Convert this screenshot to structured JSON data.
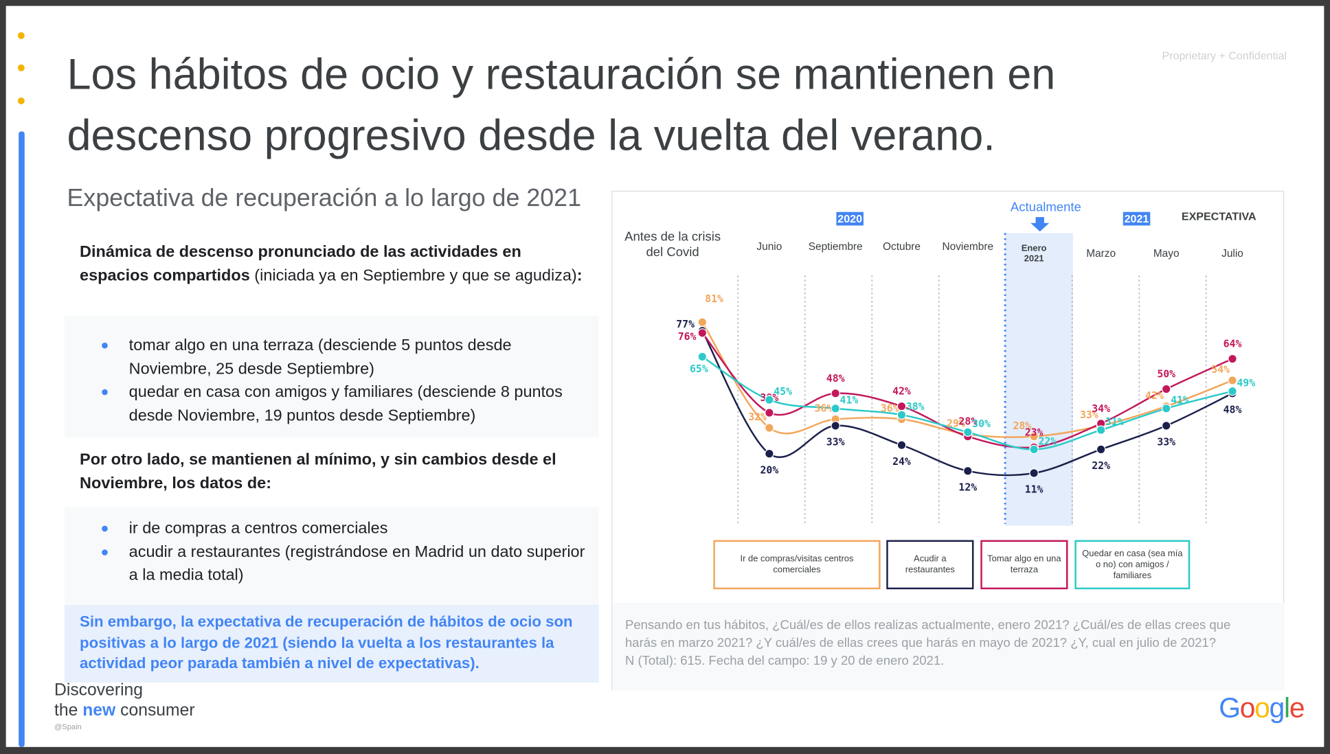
{
  "confidential": "Proprietary + Confidential",
  "title": "Los hábitos de ocio y restauración se mantienen en descenso  progresivo desde la vuelta del verano.",
  "subtitle": "Expectativa de recuperación a lo largo de 2021",
  "left": {
    "block1": {
      "heading": [
        "Dinámica de descenso pronunciado de las actividades en espacios compartidos",
        " (iniciada ya en Septiembre y que se agudiza)",
        ":"
      ],
      "bullets": [
        "tomar algo en una terraza (desciende 5 puntos desde Noviembre,  25 desde Septiembre)",
        "quedar en casa con amigos y familiares (desciende 8 puntos desde Noviembre,  19 puntos  desde Septiembre)"
      ]
    },
    "block2": {
      "heading": "Por otro lado, se mantienen al mínimo, y sin cambios desde el Noviembre, los datos de:",
      "bullets": [
        "ir de compras a centros comerciales",
        "acudir a restaurantes (registrándose en  Madrid un dato superior a la media total)"
      ]
    },
    "highlight": "Sin embargo, la expectativa de recuperación de hábitos de ocio son positivas a lo largo de 2021 (siendo la vuelta a los restaurantes la actividad peor parada también a nivel de expectativas)."
  },
  "chart_data": {
    "type": "line",
    "period_labels": [
      "2020",
      "2021"
    ],
    "current_label": "Actualmente",
    "expectation_label": "EXPECTATIVA",
    "categories": [
      "Antes de la crisis del Covid",
      "Junio",
      "Septiembre",
      "Octubre",
      "Noviembre",
      "Enero 2021",
      "Marzo",
      "Mayo",
      "Julio"
    ],
    "series": [
      {
        "name": "Ir de compras/visitas centros comerciales",
        "color": "#f2a65a",
        "values": [
          81,
          32,
          36,
          36,
          29,
          28,
          33,
          42,
          54
        ],
        "value_labels": [
          "81%",
          "32%",
          "36%",
          "36%",
          "29%",
          "28%",
          "33%",
          "42%",
          "54%"
        ]
      },
      {
        "name": "Acudir a restaurantes",
        "color": "#1b1f4b",
        "values": [
          77,
          20,
          33,
          24,
          12,
          11,
          22,
          33,
          48
        ],
        "value_labels": [
          "77%",
          "20%",
          "33%",
          "24%",
          "12%",
          "11%",
          "22%",
          "33%",
          "48%"
        ]
      },
      {
        "name": "Tomar algo en una terraza",
        "color": "#c2185b",
        "values": [
          76,
          39,
          48,
          42,
          28,
          23,
          34,
          50,
          64
        ],
        "value_labels": [
          "76%",
          "39%",
          "48%",
          "42%",
          "28%",
          "23%",
          "34%",
          "50%",
          "64%"
        ]
      },
      {
        "name": "Quedar en casa (sea mía o no) con amigos / familiares",
        "color": "#2cc9c9",
        "values": [
          65,
          45,
          41,
          38,
          30,
          22,
          31,
          41,
          49
        ],
        "value_labels": [
          "65%",
          "45%",
          "41%",
          "38%",
          "30%",
          "22%",
          "31%",
          "41%",
          "49%"
        ]
      }
    ]
  },
  "footnote": [
    "Pensando en tus hábitos, ¿Cuál/es de ellos realizas actualmente, enero 2021? ¿Cuál/es de ellas crees que harás en marzo 2021? ¿Y cuál/es de ellas crees que harás en mayo de 2021? ¿Y, cual en julio de 2021?",
    "N (Total): 615. Fecha del campo: 19 y 20 de enero 2021."
  ],
  "brand": {
    "line1": "Discovering",
    "the": "the",
    "new": "new",
    "consumer": "consumer",
    "region": "@Spain",
    "logo": "Google"
  }
}
